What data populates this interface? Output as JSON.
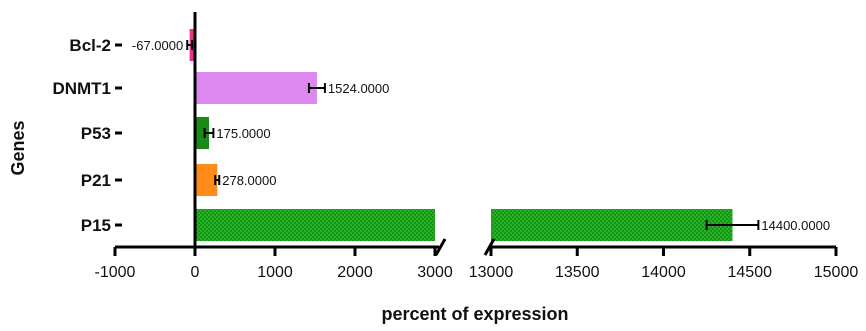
{
  "chart_data": {
    "type": "bar",
    "orientation": "horizontal",
    "xlabel": "percent of expression",
    "ylabel": "Genes",
    "x_axis_break": [
      3000,
      13000
    ],
    "x_segments": [
      {
        "range": [
          -1000,
          3000
        ],
        "ticks": [
          -1000,
          0,
          1000,
          2000,
          3000
        ]
      },
      {
        "range": [
          13000,
          15000
        ],
        "ticks": [
          13000,
          13500,
          14000,
          14500,
          15000
        ]
      }
    ],
    "categories": [
      "Bcl-2",
      "DNMT1",
      "P53",
      "P21",
      "P15"
    ],
    "values": [
      -67,
      1524,
      175,
      278,
      14400
    ],
    "errors": [
      30,
      100,
      55,
      25,
      150
    ],
    "value_labels": [
      "-67.0000",
      "1524.0000",
      "175.0000",
      "278.0000",
      "14400.0000"
    ],
    "colors": [
      "#e8328c",
      "#dd88ee",
      "#1a8a1a",
      "#ff8c1a",
      "#22b422"
    ],
    "patterns": [
      "solid",
      "solid",
      "solid",
      "solid",
      "dotted"
    ],
    "grid": false,
    "legend": "none"
  }
}
